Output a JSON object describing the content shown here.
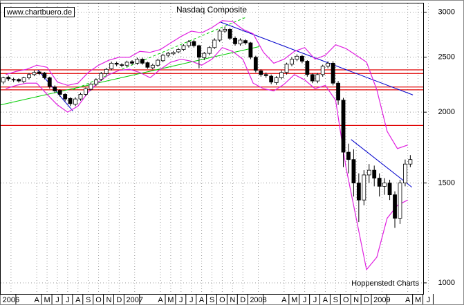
{
  "chart_data": {
    "type": "candlestick",
    "title": "Nasdaq Composite",
    "source": "www.chartbuero.de",
    "credit": "Hoppenstedt Charts",
    "log_scale": true,
    "grid": true,
    "ylim": [
      956,
      3110
    ],
    "yticks": [
      1000,
      1500,
      2000,
      2500,
      3000
    ],
    "xlim": [
      0,
      41
    ],
    "xticks": [
      {
        "value": 1.0,
        "label": "2006"
      },
      {
        "value": 3.5,
        "label": "A"
      },
      {
        "value": 4.5,
        "label": "M"
      },
      {
        "value": 5.5,
        "label": "J"
      },
      {
        "value": 6.5,
        "label": "J"
      },
      {
        "value": 7.5,
        "label": "A"
      },
      {
        "value": 8.5,
        "label": "S"
      },
      {
        "value": 9.5,
        "label": "O"
      },
      {
        "value": 10.5,
        "label": "N"
      },
      {
        "value": 11.5,
        "label": "D"
      },
      {
        "value": 13.0,
        "label": "2007"
      },
      {
        "value": 15.5,
        "label": "A"
      },
      {
        "value": 16.5,
        "label": "M"
      },
      {
        "value": 17.5,
        "label": "J"
      },
      {
        "value": 18.5,
        "label": "J"
      },
      {
        "value": 19.5,
        "label": "A"
      },
      {
        "value": 20.5,
        "label": "S"
      },
      {
        "value": 21.5,
        "label": "O"
      },
      {
        "value": 22.5,
        "label": "N"
      },
      {
        "value": 23.5,
        "label": "D"
      },
      {
        "value": 25.0,
        "label": "2008"
      },
      {
        "value": 27.5,
        "label": "A"
      },
      {
        "value": 28.5,
        "label": "M"
      },
      {
        "value": 29.5,
        "label": "J"
      },
      {
        "value": 30.5,
        "label": "J"
      },
      {
        "value": 31.5,
        "label": "A"
      },
      {
        "value": 32.5,
        "label": "S"
      },
      {
        "value": 33.5,
        "label": "O"
      },
      {
        "value": 34.5,
        "label": "N"
      },
      {
        "value": 35.5,
        "label": "D"
      },
      {
        "value": 37.0,
        "label": "2009"
      },
      {
        "value": 39.5,
        "label": "A"
      },
      {
        "value": 40.5,
        "label": "M"
      },
      {
        "value": 41.5,
        "label": "J"
      }
    ],
    "x": [
      0.25,
      0.75,
      1.25,
      1.75,
      2.25,
      2.75,
      3.25,
      3.75,
      4.25,
      4.75,
      5.25,
      5.75,
      6.25,
      6.75,
      7.25,
      7.75,
      8.25,
      8.75,
      9.25,
      9.75,
      10.25,
      10.75,
      11.25,
      11.75,
      12.25,
      12.75,
      13.25,
      13.75,
      14.25,
      14.75,
      15.25,
      15.75,
      16.25,
      16.75,
      17.25,
      17.75,
      18.25,
      18.75,
      19.25,
      19.75,
      20.25,
      20.75,
      21.25,
      21.75,
      22.25,
      22.75,
      23.25,
      23.75,
      24.25,
      24.75,
      25.25,
      25.75,
      26.25,
      26.75,
      27.25,
      27.75,
      28.25,
      28.75,
      29.25,
      29.75,
      30.25,
      30.75,
      31.25,
      31.75,
      32.25,
      32.75,
      33.25,
      33.75,
      34.25,
      34.75,
      35.25,
      35.75,
      36.25,
      36.75,
      37.25,
      37.75,
      38.25,
      38.75,
      39.25,
      39.75
    ],
    "open": [
      2260,
      2305,
      2285,
      2285,
      2265,
      2300,
      2330,
      2355,
      2345,
      2300,
      2215,
      2185,
      2150,
      2115,
      2065,
      2110,
      2150,
      2195,
      2240,
      2285,
      2340,
      2385,
      2440,
      2425,
      2420,
      2455,
      2440,
      2480,
      2445,
      2395,
      2420,
      2465,
      2520,
      2535,
      2555,
      2580,
      2620,
      2665,
      2620,
      2495,
      2540,
      2600,
      2680,
      2780,
      2800,
      2700,
      2640,
      2675,
      2650,
      2500,
      2365,
      2330,
      2315,
      2255,
      2300,
      2350,
      2430,
      2480,
      2510,
      2460,
      2330,
      2270,
      2330,
      2410,
      2440,
      2250,
      2100,
      1700,
      1650,
      1500,
      1400,
      1550,
      1580,
      1530,
      1480,
      1500,
      1430,
      1300,
      1500,
      1620
    ],
    "high": [
      2310,
      2320,
      2300,
      2295,
      2310,
      2345,
      2370,
      2365,
      2355,
      2310,
      2230,
      2195,
      2160,
      2125,
      2125,
      2165,
      2210,
      2255,
      2295,
      2355,
      2395,
      2455,
      2455,
      2440,
      2465,
      2470,
      2495,
      2495,
      2455,
      2435,
      2485,
      2535,
      2555,
      2565,
      2595,
      2635,
      2680,
      2680,
      2630,
      2555,
      2615,
      2700,
      2800,
      2830,
      2815,
      2720,
      2700,
      2690,
      2660,
      2515,
      2380,
      2350,
      2330,
      2315,
      2370,
      2445,
      2500,
      2530,
      2525,
      2470,
      2340,
      2345,
      2425,
      2460,
      2460,
      2270,
      2120,
      1760,
      1720,
      1560,
      1580,
      1620,
      1610,
      1560,
      1530,
      1520,
      1450,
      1520,
      1650,
      1680
    ],
    "low": [
      2240,
      2270,
      2260,
      2255,
      2250,
      2285,
      2315,
      2325,
      2285,
      2200,
      2160,
      2130,
      2090,
      2050,
      2050,
      2095,
      2135,
      2180,
      2225,
      2270,
      2325,
      2370,
      2410,
      2400,
      2400,
      2425,
      2425,
      2425,
      2385,
      2380,
      2405,
      2450,
      2500,
      2520,
      2540,
      2565,
      2600,
      2600,
      2390,
      2470,
      2520,
      2585,
      2660,
      2760,
      2680,
      2620,
      2620,
      2630,
      2480,
      2350,
      2310,
      2300,
      2240,
      2235,
      2285,
      2330,
      2410,
      2460,
      2440,
      2310,
      2250,
      2250,
      2310,
      2390,
      2230,
      2060,
      1600,
      1560,
      1420,
      1280,
      1370,
      1500,
      1480,
      1420,
      1430,
      1400,
      1250,
      1270,
      1480,
      1600
    ],
    "close": [
      2300,
      2290,
      2280,
      2270,
      2300,
      2330,
      2350,
      2340,
      2300,
      2220,
      2180,
      2150,
      2110,
      2070,
      2110,
      2150,
      2200,
      2240,
      2280,
      2340,
      2380,
      2440,
      2430,
      2420,
      2450,
      2440,
      2480,
      2440,
      2400,
      2420,
      2470,
      2520,
      2540,
      2550,
      2580,
      2620,
      2660,
      2620,
      2500,
      2540,
      2600,
      2680,
      2780,
      2800,
      2700,
      2640,
      2680,
      2650,
      2500,
      2370,
      2330,
      2320,
      2260,
      2300,
      2350,
      2430,
      2480,
      2510,
      2460,
      2330,
      2270,
      2330,
      2410,
      2440,
      2250,
      2100,
      1700,
      1650,
      1500,
      1400,
      1550,
      1580,
      1530,
      1480,
      1500,
      1430,
      1300,
      1500,
      1620,
      1650
    ],
    "bands": {
      "color": "#e020e0",
      "x": [
        0.5,
        1.5,
        2.5,
        3.5,
        4.5,
        5.5,
        6.5,
        7.5,
        8.5,
        9.5,
        10.5,
        11.5,
        12.5,
        13.5,
        14.5,
        15.5,
        16.5,
        17.5,
        18.5,
        19.5,
        20.5,
        21.5,
        22.5,
        23.5,
        24.5,
        25.5,
        26.5,
        27.5,
        28.5,
        29.5,
        30.5,
        31.5,
        32.5,
        33.5,
        34.5,
        35.5,
        36.5,
        37.5,
        38.5,
        39.5
      ],
      "upper": [
        2330,
        2360,
        2380,
        2420,
        2400,
        2260,
        2230,
        2250,
        2350,
        2420,
        2470,
        2500,
        2500,
        2560,
        2550,
        2580,
        2650,
        2720,
        2780,
        2760,
        2820,
        2900,
        2890,
        2800,
        2750,
        2550,
        2440,
        2480,
        2560,
        2600,
        2480,
        2520,
        2630,
        2590,
        2520,
        2450,
        2190,
        1850,
        1725,
        1750
      ],
      "lower": [
        2200,
        2230,
        2250,
        2250,
        2150,
        2060,
        2000,
        2050,
        2170,
        2260,
        2330,
        2370,
        2380,
        2350,
        2300,
        2380,
        2450,
        2480,
        2460,
        2420,
        2480,
        2600,
        2560,
        2480,
        2250,
        2200,
        2180,
        2240,
        2330,
        2280,
        2200,
        2230,
        2100,
        1600,
        1300,
        1055,
        1110,
        1300,
        1370,
        1400
      ]
    },
    "hlines": {
      "color": "#e00000",
      "values": [
        2375,
        2340,
        2215,
        2190,
        1895
      ]
    },
    "trendlines": [
      {
        "color": "#0000cc",
        "dashed": false,
        "x": [
          21.3,
          40.0
        ],
        "y": [
          2885,
          2145
        ]
      },
      {
        "color": "#0000cc",
        "dashed": false,
        "x": [
          3.6,
          7.0
        ],
        "y": [
          2375,
          2010
        ]
      },
      {
        "color": "#0000cc",
        "dashed": false,
        "x": [
          34.0,
          39.9
        ],
        "y": [
          1790,
          1475
        ]
      },
      {
        "color": "#00cc00",
        "dashed": false,
        "x": [
          0,
          25.1
        ],
        "y": [
          2060,
          2610
        ]
      },
      {
        "color": "#00cc00",
        "dashed": true,
        "x": [
          7.0,
          23.8
        ],
        "y": [
          2190,
          2940
        ]
      }
    ]
  }
}
